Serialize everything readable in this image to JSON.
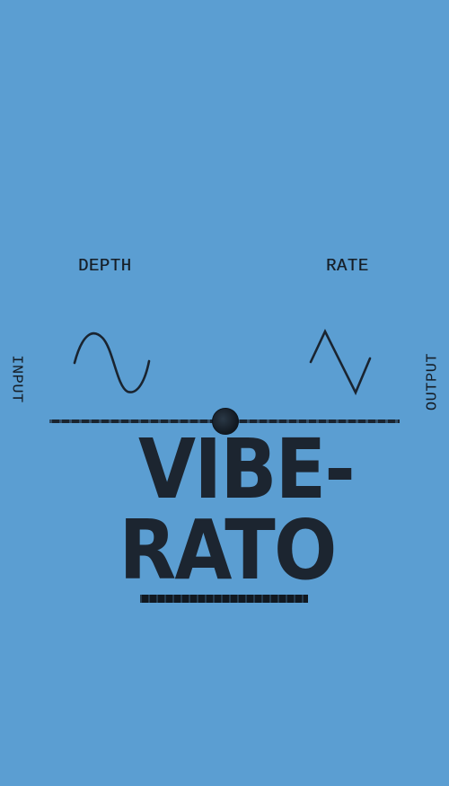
{
  "controls": {
    "depth_label": "DEPTH",
    "rate_label": "RATE",
    "depth_icon": "sine-wave-icon",
    "rate_icon": "triangle-wave-icon"
  },
  "jacks": {
    "input_label": "INPUT",
    "output_label": "OUTPUT"
  },
  "title": {
    "line1": "VIBE-",
    "line2": "RATO"
  },
  "colors": {
    "background": "#5b9ed2",
    "ink": "#1c2530"
  }
}
